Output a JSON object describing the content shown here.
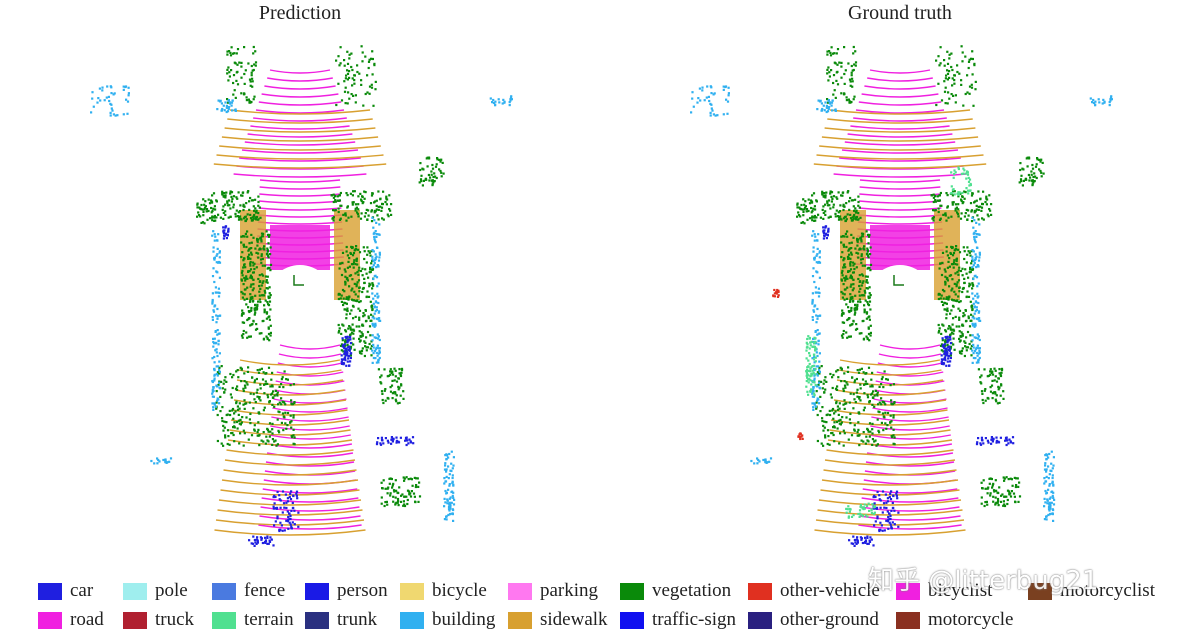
{
  "panels": {
    "left": {
      "title": "Prediction"
    },
    "right": {
      "title": "Ground truth"
    }
  },
  "legend": {
    "row1": [
      {
        "label": "car",
        "color": "#1f1fe0"
      },
      {
        "label": "pole",
        "color": "#9feeee"
      },
      {
        "label": "fence",
        "color": "#4a7ae0"
      },
      {
        "label": "person",
        "color": "#1a1ae6"
      },
      {
        "label": "bicycle",
        "color": "#f0d870"
      },
      {
        "label": "parking",
        "color": "#ff78f0"
      },
      {
        "label": "vegetation",
        "color": "#0a8a0a"
      },
      {
        "label": "other-vehicle",
        "color": "#e03020"
      },
      {
        "label": "bicyclist",
        "color": "#f020e0"
      },
      {
        "label": "motorcyclist",
        "color": "#7a4020"
      }
    ],
    "row2": [
      {
        "label": "road",
        "color": "#f020e0"
      },
      {
        "label": "truck",
        "color": "#b02030"
      },
      {
        "label": "terrain",
        "color": "#50e090"
      },
      {
        "label": "trunk",
        "color": "#2a3080"
      },
      {
        "label": "building",
        "color": "#30b0f0"
      },
      {
        "label": "sidewalk",
        "color": "#d8a030"
      },
      {
        "label": "traffic-sign",
        "color": "#1010f0"
      },
      {
        "label": "other-ground",
        "color": "#2a2080"
      },
      {
        "label": "motorcycle",
        "color": "#8a3020"
      }
    ]
  },
  "watermark": "知乎 @litterbug21"
}
